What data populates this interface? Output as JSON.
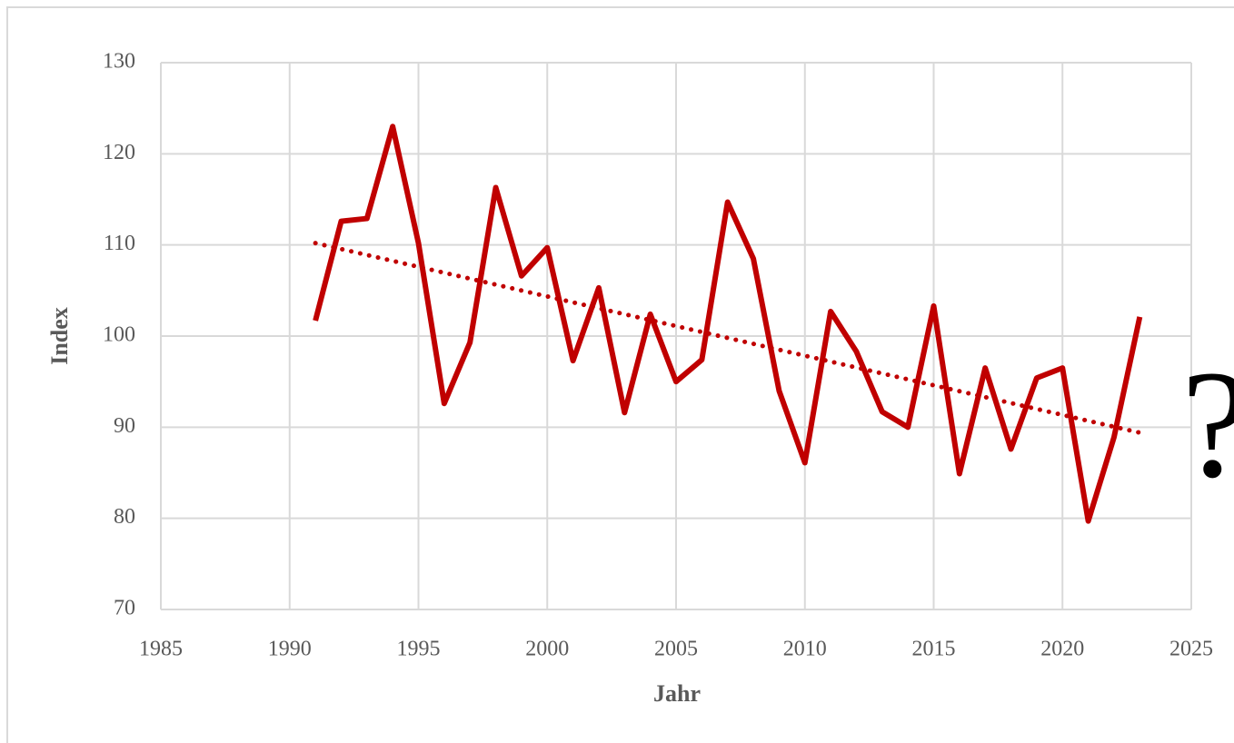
{
  "chart_data": {
    "type": "line",
    "x_label": "Jahr",
    "y_label": "Index",
    "annotation": "?",
    "x": [
      1991,
      1992,
      1993,
      1994,
      1995,
      1996,
      1997,
      1998,
      1999,
      2000,
      2001,
      2002,
      2003,
      2004,
      2005,
      2006,
      2007,
      2008,
      2009,
      2010,
      2011,
      2012,
      2013,
      2014,
      2015,
      2016,
      2017,
      2018,
      2019,
      2020,
      2021,
      2022,
      2023
    ],
    "values": [
      101.7,
      112.6,
      112.9,
      123.0,
      110.2,
      92.6,
      99.3,
      116.3,
      106.6,
      109.7,
      97.3,
      105.3,
      91.6,
      102.4,
      95.0,
      97.4,
      114.7,
      108.5,
      94.0,
      86.1,
      102.7,
      98.3,
      91.7,
      90.0,
      103.3,
      84.9,
      96.5,
      87.6,
      95.4,
      96.5,
      79.7,
      88.9,
      102.1
    ],
    "color": "#c00000",
    "trendline": {
      "x": [
        1991,
        2023
      ],
      "values": [
        110.2,
        89.4
      ],
      "color": "#c00000",
      "style": "dotted"
    },
    "xlim": [
      1985,
      2025
    ],
    "xticks": [
      1985,
      1990,
      1995,
      2000,
      2005,
      2010,
      2015,
      2020,
      2025
    ],
    "ylim": [
      70,
      130
    ],
    "yticks": [
      70,
      80,
      90,
      100,
      110,
      120,
      130
    ],
    "grid": true
  }
}
